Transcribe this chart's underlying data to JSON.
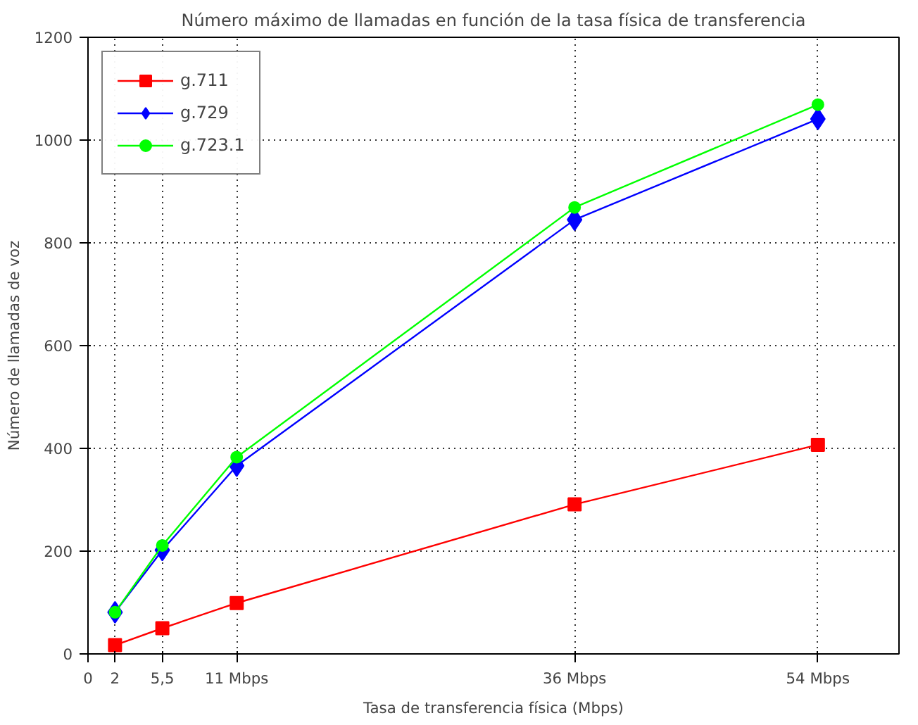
{
  "chart_data": {
    "type": "line",
    "title": "Número máximo de llamadas en función de la tasa física de transferencia",
    "xlabel": "Tasa de transferencia física (Mbps)",
    "ylabel": "Número de llamadas de voz",
    "x": [
      2,
      5.5,
      11,
      36,
      54
    ],
    "series": [
      {
        "name": "g.711",
        "color": "#ff0000",
        "marker": "square",
        "values": [
          17,
          50,
          99,
          291,
          407
        ]
      },
      {
        "name": "g.729",
        "color": "#0000ff",
        "marker": "diamond",
        "values": [
          81,
          202,
          366,
          845,
          1041
        ]
      },
      {
        "name": "g.723.1",
        "color": "#00ff00",
        "marker": "circle",
        "values": [
          81,
          211,
          383,
          869,
          1069
        ]
      }
    ],
    "xlim": [
      0,
      60
    ],
    "ylim": [
      0,
      1200
    ],
    "xticks": [
      0,
      2,
      {
        "value": 5.5,
        "label": "5,5"
      },
      {
        "value": 11,
        "label": "11 Mbps"
      },
      {
        "value": 36,
        "label": "36 Mbps"
      },
      {
        "value": 54,
        "label": "54 Mbps"
      }
    ],
    "yticks": [
      0,
      200,
      400,
      600,
      800,
      1000,
      1200
    ],
    "grid": true,
    "legend": "top left",
    "line_style": "solid"
  }
}
